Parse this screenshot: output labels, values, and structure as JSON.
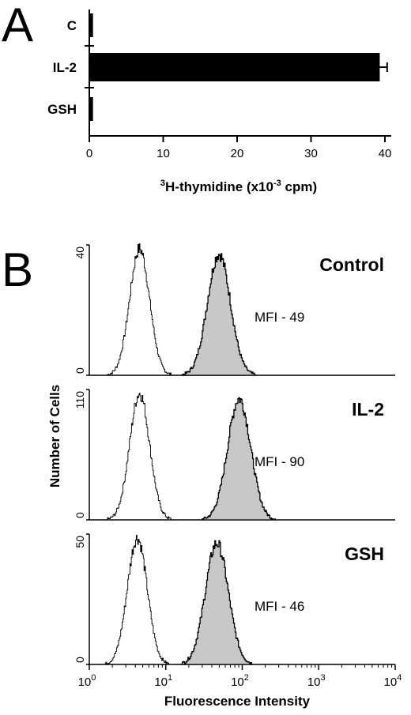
{
  "panel_a_letter": "A",
  "panel_b_letter": "B",
  "chart_data": [
    {
      "type": "bar",
      "orientation": "horizontal",
      "categories": [
        "C",
        "IL-2",
        "GSH"
      ],
      "values": [
        0.5,
        39.3,
        0.5
      ],
      "errors": [
        0.2,
        1.0,
        0.2
      ],
      "xlabel": "H-thymidine (x10 cpm)",
      "xlabel_sup1": "3",
      "xlabel_sup2": "-3",
      "xlim": [
        0,
        40
      ],
      "xticks": [
        "0",
        "10",
        "20",
        "30",
        "40"
      ]
    },
    {
      "type": "area",
      "xscale": "log",
      "xlim": [
        1,
        10000
      ],
      "xticks": [
        {
          "base": "10",
          "exp": "0"
        },
        {
          "base": "10",
          "exp": "1"
        },
        {
          "base": "10",
          "exp": "2"
        },
        {
          "base": "10",
          "exp": "3"
        },
        {
          "base": "10",
          "exp": "4"
        }
      ],
      "xlabel": "Fluorescence Intensity",
      "ylabel": "Number of Cells",
      "panels": [
        {
          "name": "Control",
          "mfi_label": "MFI - 49",
          "ymax": 40,
          "ymax_label": "40",
          "unfilled_peak_x": 4.5,
          "filled_peak_x": 49
        },
        {
          "name": "IL-2",
          "mfi_label": "MFI - 90",
          "ymax": 110,
          "ymax_label": "110",
          "ymin_label": "0",
          "unfilled_peak_x": 4.5,
          "filled_peak_x": 90
        },
        {
          "name": "GSH",
          "mfi_label": "MFI - 46",
          "ymax": 50,
          "ymax_label": "50",
          "ymin_label": "0",
          "unfilled_peak_x": 4.2,
          "filled_peak_x": 46
        }
      ],
      "control_ymin_label": "0"
    }
  ]
}
